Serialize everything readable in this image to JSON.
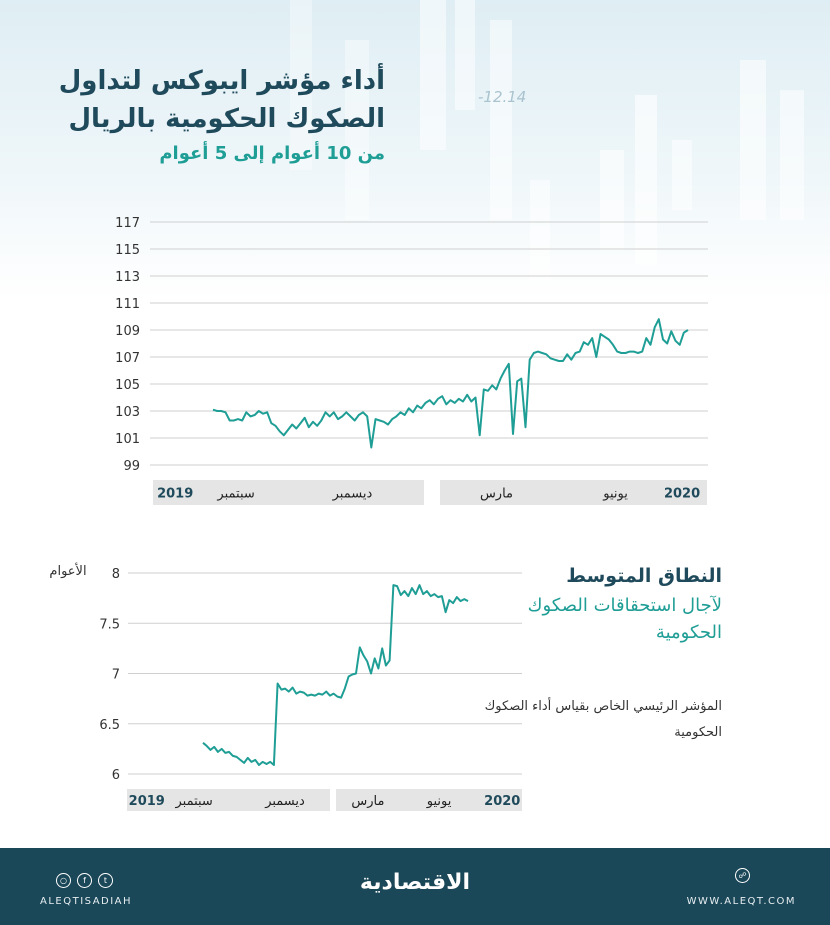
{
  "title": "أداء مؤشر ايبوكس لتداول الصكوك الحكومية بالريال",
  "subtitle": "من 10 أعوام إلى 5 أعوام",
  "ticker": "-12.14",
  "side": {
    "title": "النطاق المتوسط",
    "subtitle": "لآجال استحقاقات الصكوك الحكومية",
    "description": "المؤشر الرئيسي الخاص بقياس أداء الصكوك الحكومية"
  },
  "footer": {
    "brand": "الاقتصادية",
    "handle": "ALEQTISADIAH",
    "site": "WWW.ALEQT.COM",
    "social_icons": [
      "instagram-icon",
      "facebook-icon",
      "twitter-icon"
    ],
    "site_icon": "web-icon"
  },
  "colors": {
    "line": "#1f9e96",
    "title": "#1f4a5b",
    "footer": "#1b4858",
    "axis_band": "#e5e5e5"
  },
  "chart_data": [
    {
      "type": "line",
      "ylim": [
        99,
        117
      ],
      "yticks": [
        117,
        115,
        113,
        111,
        109,
        107,
        105,
        103,
        101,
        99
      ],
      "x_labels": [
        {
          "label": "2019",
          "pos": 0.04
        },
        {
          "label": "سبتمبر",
          "pos": 0.15
        },
        {
          "label": "ديسمبر",
          "pos": 0.36
        },
        {
          "label": "مارس",
          "pos": 0.62
        },
        {
          "label": "يونيو",
          "pos": 0.835
        },
        {
          "label": "2020",
          "pos": 0.955
        }
      ],
      "y": [
        103.1,
        103.0,
        103.0,
        102.9,
        102.3,
        102.3,
        102.4,
        102.3,
        102.9,
        102.6,
        102.7,
        103.0,
        102.8,
        102.9,
        102.1,
        101.9,
        101.5,
        101.2,
        101.6,
        102.0,
        101.7,
        102.1,
        102.5,
        101.8,
        102.2,
        101.9,
        102.3,
        102.9,
        102.6,
        102.9,
        102.4,
        102.6,
        102.9,
        102.6,
        102.3,
        102.7,
        102.9,
        102.6,
        100.3,
        102.4,
        102.3,
        102.2,
        102.0,
        102.4,
        102.6,
        102.9,
        102.7,
        103.2,
        102.9,
        103.4,
        103.2,
        103.6,
        103.8,
        103.5,
        103.9,
        104.1,
        103.5,
        103.8,
        103.6,
        103.9,
        103.7,
        104.2,
        103.7,
        104.0,
        101.2,
        104.6,
        104.5,
        104.9,
        104.6,
        105.4,
        106.0,
        106.5,
        101.3,
        105.2,
        105.4,
        101.8,
        106.8,
        107.3,
        107.4,
        107.3,
        107.2,
        106.9,
        106.8,
        106.7,
        106.7,
        107.2,
        106.8,
        107.3,
        107.4,
        108.1,
        107.9,
        108.4,
        107.0,
        108.7,
        108.5,
        108.3,
        107.9,
        107.4,
        107.3,
        107.3,
        107.4,
        107.4,
        107.3,
        107.4,
        108.4,
        107.9,
        109.2,
        109.8,
        108.3,
        108.0,
        108.9,
        108.2,
        107.9,
        108.8,
        109.0
      ],
      "xlabel": "",
      "ylabel": ""
    },
    {
      "type": "line",
      "ylim": [
        6,
        8
      ],
      "yticks": [
        8,
        7.5,
        7,
        6.5,
        6
      ],
      "ylabel": "الأعوام",
      "x_labels": [
        {
          "label": "2019",
          "pos": 0.05
        },
        {
          "label": "سبتمبر",
          "pos": 0.17
        },
        {
          "label": "ديسمبر",
          "pos": 0.4
        },
        {
          "label": "مارس",
          "pos": 0.61
        },
        {
          "label": "يونيو",
          "pos": 0.79
        },
        {
          "label": "2020",
          "pos": 0.95
        }
      ],
      "y": [
        6.31,
        6.28,
        6.24,
        6.27,
        6.22,
        6.25,
        6.21,
        6.22,
        6.18,
        6.17,
        6.14,
        6.11,
        6.16,
        6.12,
        6.14,
        6.09,
        6.12,
        6.1,
        6.12,
        6.09,
        6.9,
        6.84,
        6.85,
        6.82,
        6.86,
        6.8,
        6.82,
        6.81,
        6.78,
        6.79,
        6.78,
        6.8,
        6.79,
        6.82,
        6.78,
        6.8,
        6.77,
        6.76,
        6.85,
        6.97,
        6.99,
        7.0,
        7.26,
        7.18,
        7.12,
        7.0,
        7.15,
        7.05,
        7.25,
        7.08,
        7.13,
        7.88,
        7.87,
        7.78,
        7.82,
        7.77,
        7.85,
        7.79,
        7.88,
        7.79,
        7.82,
        7.77,
        7.79,
        7.76,
        7.77,
        7.61,
        7.73,
        7.7,
        7.76,
        7.72,
        7.74,
        7.72
      ]
    }
  ]
}
